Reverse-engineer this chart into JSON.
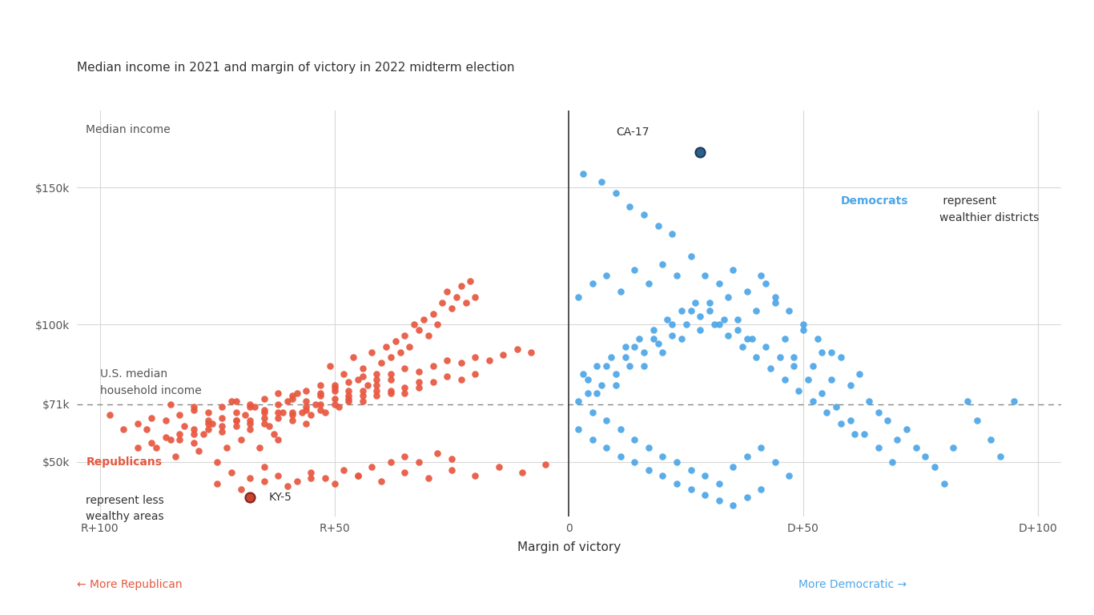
{
  "subtitle": "Median income in 2021 and margin of victory in 2022 midterm election",
  "ylabel_text": "Median income",
  "xlabel_text": "Margin of victory",
  "xlim": [
    -105,
    105
  ],
  "ylim": [
    30000,
    178000
  ],
  "median_income_line": 71000,
  "yticks": [
    50000,
    71000,
    100000,
    150000
  ],
  "ytick_labels": [
    "$50k",
    "$71k",
    "$100k",
    "$150k"
  ],
  "xticks": [
    -100,
    -50,
    0,
    50,
    100
  ],
  "xtick_labels": [
    "R+100",
    "R+50",
    "0",
    "D+50",
    "D+100"
  ],
  "republican_color": "#E8573F",
  "democrat_color": "#4DA6E8",
  "ca17_color": "#2C5F8A",
  "ky5_color": "#C44830",
  "background_color": "#FFFFFF",
  "grid_color": "#D8D8D8",
  "republicans": [
    [
      -98,
      67000
    ],
    [
      -90,
      62000
    ],
    [
      -88,
      55000
    ],
    [
      -85,
      71000
    ],
    [
      -84,
      52000
    ],
    [
      -82,
      63000
    ],
    [
      -80,
      57000
    ],
    [
      -79,
      54000
    ],
    [
      -78,
      60000
    ],
    [
      -76,
      64000
    ],
    [
      -75,
      50000
    ],
    [
      -73,
      55000
    ],
    [
      -72,
      72000
    ],
    [
      -71,
      65000
    ],
    [
      -70,
      58000
    ],
    [
      -69,
      67000
    ],
    [
      -68,
      62000
    ],
    [
      -67,
      70000
    ],
    [
      -66,
      55000
    ],
    [
      -65,
      68000
    ],
    [
      -64,
      63000
    ],
    [
      -63,
      60000
    ],
    [
      -62,
      58000
    ],
    [
      -61,
      68000
    ],
    [
      -60,
      72000
    ],
    [
      -59,
      65000
    ],
    [
      -58,
      75000
    ],
    [
      -57,
      68000
    ],
    [
      -56,
      64000
    ],
    [
      -55,
      67000
    ],
    [
      -54,
      71000
    ],
    [
      -53,
      75000
    ],
    [
      -52,
      68000
    ],
    [
      -51,
      85000
    ],
    [
      -50,
      78000
    ],
    [
      -49,
      70000
    ],
    [
      -48,
      82000
    ],
    [
      -47,
      76000
    ],
    [
      -46,
      88000
    ],
    [
      -45,
      80000
    ],
    [
      -44,
      84000
    ],
    [
      -43,
      78000
    ],
    [
      -42,
      90000
    ],
    [
      -41,
      82000
    ],
    [
      -40,
      86000
    ],
    [
      -39,
      92000
    ],
    [
      -38,
      88000
    ],
    [
      -37,
      94000
    ],
    [
      -36,
      90000
    ],
    [
      -35,
      96000
    ],
    [
      -34,
      92000
    ],
    [
      -33,
      100000
    ],
    [
      -32,
      98000
    ],
    [
      -31,
      102000
    ],
    [
      -30,
      96000
    ],
    [
      -29,
      104000
    ],
    [
      -28,
      100000
    ],
    [
      -27,
      108000
    ],
    [
      -26,
      112000
    ],
    [
      -25,
      106000
    ],
    [
      -24,
      110000
    ],
    [
      -23,
      114000
    ],
    [
      -22,
      108000
    ],
    [
      -21,
      116000
    ],
    [
      -20,
      110000
    ],
    [
      -72,
      46000
    ],
    [
      -68,
      44000
    ],
    [
      -65,
      48000
    ],
    [
      -62,
      45000
    ],
    [
      -58,
      43000
    ],
    [
      -55,
      46000
    ],
    [
      -52,
      44000
    ],
    [
      -48,
      47000
    ],
    [
      -45,
      45000
    ],
    [
      -42,
      48000
    ],
    [
      -38,
      50000
    ],
    [
      -35,
      52000
    ],
    [
      -32,
      50000
    ],
    [
      -28,
      53000
    ],
    [
      -25,
      51000
    ],
    [
      -80,
      70000
    ],
    [
      -77,
      65000
    ],
    [
      -74,
      66000
    ],
    [
      -71,
      68000
    ],
    [
      -68,
      70000
    ],
    [
      -65,
      69000
    ],
    [
      -62,
      71000
    ],
    [
      -59,
      73000
    ],
    [
      -56,
      72000
    ],
    [
      -53,
      74000
    ],
    [
      -50,
      76000
    ],
    [
      -47,
      74000
    ],
    [
      -44,
      76000
    ],
    [
      -41,
      78000
    ],
    [
      -38,
      80000
    ],
    [
      -85,
      58000
    ],
    [
      -83,
      60000
    ],
    [
      -80,
      62000
    ],
    [
      -77,
      64000
    ],
    [
      -74,
      63000
    ],
    [
      -71,
      65000
    ],
    [
      -68,
      64000
    ],
    [
      -65,
      66000
    ],
    [
      -62,
      68000
    ],
    [
      -59,
      67000
    ],
    [
      -56,
      69000
    ],
    [
      -53,
      71000
    ],
    [
      -50,
      73000
    ],
    [
      -47,
      72000
    ],
    [
      -44,
      74000
    ],
    [
      -41,
      76000
    ],
    [
      -38,
      75000
    ],
    [
      -35,
      77000
    ],
    [
      -32,
      79000
    ],
    [
      -92,
      55000
    ],
    [
      -89,
      57000
    ],
    [
      -86,
      59000
    ],
    [
      -83,
      58000
    ],
    [
      -80,
      60000
    ],
    [
      -77,
      62000
    ],
    [
      -74,
      61000
    ],
    [
      -71,
      63000
    ],
    [
      -68,
      65000
    ],
    [
      -65,
      64000
    ],
    [
      -62,
      66000
    ],
    [
      -59,
      68000
    ],
    [
      -56,
      70000
    ],
    [
      -53,
      69000
    ],
    [
      -50,
      71000
    ],
    [
      -47,
      73000
    ],
    [
      -44,
      72000
    ],
    [
      -41,
      74000
    ],
    [
      -38,
      76000
    ],
    [
      -35,
      75000
    ],
    [
      -32,
      77000
    ],
    [
      -29,
      79000
    ],
    [
      -26,
      81000
    ],
    [
      -23,
      80000
    ],
    [
      -20,
      82000
    ],
    [
      -95,
      62000
    ],
    [
      -92,
      64000
    ],
    [
      -89,
      66000
    ],
    [
      -86,
      65000
    ],
    [
      -83,
      67000
    ],
    [
      -80,
      69000
    ],
    [
      -77,
      68000
    ],
    [
      -74,
      70000
    ],
    [
      -71,
      72000
    ],
    [
      -68,
      71000
    ],
    [
      -65,
      73000
    ],
    [
      -62,
      75000
    ],
    [
      -59,
      74000
    ],
    [
      -56,
      76000
    ],
    [
      -53,
      78000
    ],
    [
      -50,
      77000
    ],
    [
      -47,
      79000
    ],
    [
      -44,
      81000
    ],
    [
      -41,
      80000
    ],
    [
      -38,
      82000
    ],
    [
      -35,
      84000
    ],
    [
      -32,
      83000
    ],
    [
      -29,
      85000
    ],
    [
      -26,
      87000
    ],
    [
      -23,
      86000
    ],
    [
      -20,
      88000
    ],
    [
      -17,
      87000
    ],
    [
      -14,
      89000
    ],
    [
      -11,
      91000
    ],
    [
      -8,
      90000
    ],
    [
      -75,
      42000
    ],
    [
      -70,
      40000
    ],
    [
      -65,
      43000
    ],
    [
      -60,
      41000
    ],
    [
      -55,
      44000
    ],
    [
      -50,
      42000
    ],
    [
      -45,
      45000
    ],
    [
      -40,
      43000
    ],
    [
      -35,
      46000
    ],
    [
      -30,
      44000
    ],
    [
      -25,
      47000
    ],
    [
      -20,
      45000
    ],
    [
      -15,
      48000
    ],
    [
      -10,
      46000
    ],
    [
      -5,
      49000
    ]
  ],
  "democrats": [
    [
      2,
      72000
    ],
    [
      4,
      80000
    ],
    [
      6,
      75000
    ],
    [
      8,
      85000
    ],
    [
      10,
      78000
    ],
    [
      12,
      88000
    ],
    [
      14,
      92000
    ],
    [
      16,
      85000
    ],
    [
      18,
      95000
    ],
    [
      20,
      90000
    ],
    [
      22,
      100000
    ],
    [
      24,
      95000
    ],
    [
      26,
      105000
    ],
    [
      28,
      98000
    ],
    [
      30,
      108000
    ],
    [
      32,
      100000
    ],
    [
      34,
      110000
    ],
    [
      36,
      102000
    ],
    [
      38,
      95000
    ],
    [
      40,
      105000
    ],
    [
      42,
      115000
    ],
    [
      44,
      108000
    ],
    [
      46,
      95000
    ],
    [
      48,
      88000
    ],
    [
      50,
      98000
    ],
    [
      52,
      85000
    ],
    [
      54,
      90000
    ],
    [
      56,
      80000
    ],
    [
      58,
      88000
    ],
    [
      60,
      78000
    ],
    [
      62,
      82000
    ],
    [
      64,
      72000
    ],
    [
      66,
      68000
    ],
    [
      68,
      65000
    ],
    [
      70,
      58000
    ],
    [
      72,
      62000
    ],
    [
      74,
      55000
    ],
    [
      76,
      52000
    ],
    [
      78,
      48000
    ],
    [
      80,
      42000
    ],
    [
      82,
      55000
    ],
    [
      85,
      72000
    ],
    [
      87,
      65000
    ],
    [
      90,
      58000
    ],
    [
      92,
      52000
    ],
    [
      95,
      72000
    ],
    [
      3,
      155000
    ],
    [
      7,
      152000
    ],
    [
      10,
      148000
    ],
    [
      13,
      143000
    ],
    [
      16,
      140000
    ],
    [
      19,
      136000
    ],
    [
      22,
      133000
    ],
    [
      2,
      62000
    ],
    [
      5,
      58000
    ],
    [
      8,
      55000
    ],
    [
      11,
      52000
    ],
    [
      14,
      50000
    ],
    [
      17,
      47000
    ],
    [
      20,
      45000
    ],
    [
      23,
      42000
    ],
    [
      26,
      40000
    ],
    [
      29,
      38000
    ],
    [
      32,
      36000
    ],
    [
      35,
      34000
    ],
    [
      38,
      37000
    ],
    [
      41,
      40000
    ],
    [
      3,
      82000
    ],
    [
      6,
      85000
    ],
    [
      9,
      88000
    ],
    [
      12,
      92000
    ],
    [
      15,
      95000
    ],
    [
      18,
      98000
    ],
    [
      21,
      102000
    ],
    [
      24,
      105000
    ],
    [
      27,
      108000
    ],
    [
      30,
      105000
    ],
    [
      33,
      102000
    ],
    [
      36,
      98000
    ],
    [
      39,
      95000
    ],
    [
      42,
      92000
    ],
    [
      45,
      88000
    ],
    [
      48,
      85000
    ],
    [
      51,
      80000
    ],
    [
      54,
      75000
    ],
    [
      57,
      70000
    ],
    [
      60,
      65000
    ],
    [
      63,
      60000
    ],
    [
      66,
      55000
    ],
    [
      69,
      50000
    ],
    [
      4,
      75000
    ],
    [
      7,
      78000
    ],
    [
      10,
      82000
    ],
    [
      13,
      85000
    ],
    [
      16,
      90000
    ],
    [
      19,
      93000
    ],
    [
      22,
      96000
    ],
    [
      25,
      100000
    ],
    [
      28,
      103000
    ],
    [
      31,
      100000
    ],
    [
      34,
      96000
    ],
    [
      37,
      92000
    ],
    [
      40,
      88000
    ],
    [
      43,
      84000
    ],
    [
      46,
      80000
    ],
    [
      49,
      76000
    ],
    [
      52,
      72000
    ],
    [
      55,
      68000
    ],
    [
      58,
      64000
    ],
    [
      61,
      60000
    ],
    [
      2,
      110000
    ],
    [
      5,
      115000
    ],
    [
      8,
      118000
    ],
    [
      11,
      112000
    ],
    [
      14,
      120000
    ],
    [
      17,
      115000
    ],
    [
      20,
      122000
    ],
    [
      23,
      118000
    ],
    [
      26,
      125000
    ],
    [
      29,
      118000
    ],
    [
      32,
      115000
    ],
    [
      35,
      120000
    ],
    [
      38,
      112000
    ],
    [
      41,
      118000
    ],
    [
      44,
      110000
    ],
    [
      47,
      105000
    ],
    [
      50,
      100000
    ],
    [
      53,
      95000
    ],
    [
      56,
      90000
    ],
    [
      5,
      68000
    ],
    [
      8,
      65000
    ],
    [
      11,
      62000
    ],
    [
      14,
      58000
    ],
    [
      17,
      55000
    ],
    [
      20,
      52000
    ],
    [
      23,
      50000
    ],
    [
      26,
      47000
    ],
    [
      29,
      45000
    ],
    [
      32,
      42000
    ],
    [
      35,
      48000
    ],
    [
      38,
      52000
    ],
    [
      41,
      55000
    ],
    [
      44,
      50000
    ],
    [
      47,
      45000
    ]
  ],
  "ca17": [
    28,
    163000
  ],
  "ky5": [
    -68,
    37000
  ],
  "more_rep_arrow": "← More Republican",
  "more_dem_arrow": "More Democratic →",
  "dem_annotation_colored": "Democrats",
  "dem_annotation_rest": " represent\nwealthier districts",
  "rep_annotation_colored": "Republicans",
  "rep_annotation_rest": "\nrepresent less\nwealthy areas",
  "median_annotation": "U.S. median\nhousehold income",
  "marker_size": 38
}
